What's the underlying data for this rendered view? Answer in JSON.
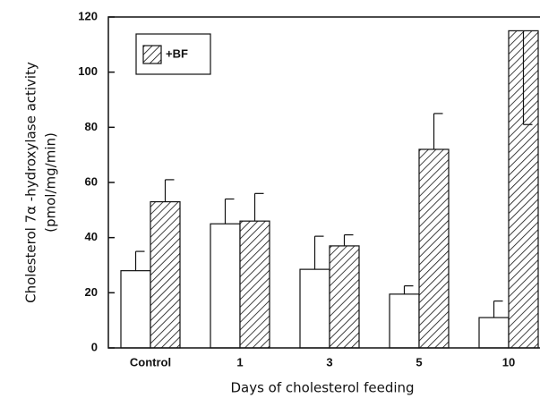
{
  "chart_data": {
    "type": "bar",
    "ylabel": [
      "Cholesterol 7α -hydroxylase activity",
      "(pmol/mg/min)"
    ],
    "xlabel": "Days of cholesterol feeding",
    "categories": [
      "Control",
      "1",
      "3",
      "5",
      "10"
    ],
    "series": [
      {
        "name": null,
        "color": "#ffffff",
        "values": [
          28,
          45,
          28.5,
          19.5,
          11
        ],
        "errors": [
          7,
          9,
          12,
          3,
          6
        ]
      },
      {
        "name": "+BF",
        "color": "hatch",
        "values": [
          53,
          46,
          37,
          72,
          115
        ],
        "errors": [
          8,
          10,
          4,
          13,
          34
        ]
      }
    ],
    "ylim": [
      0,
      120
    ],
    "yticks": [
      0,
      20,
      40,
      60,
      80,
      100,
      120
    ]
  }
}
